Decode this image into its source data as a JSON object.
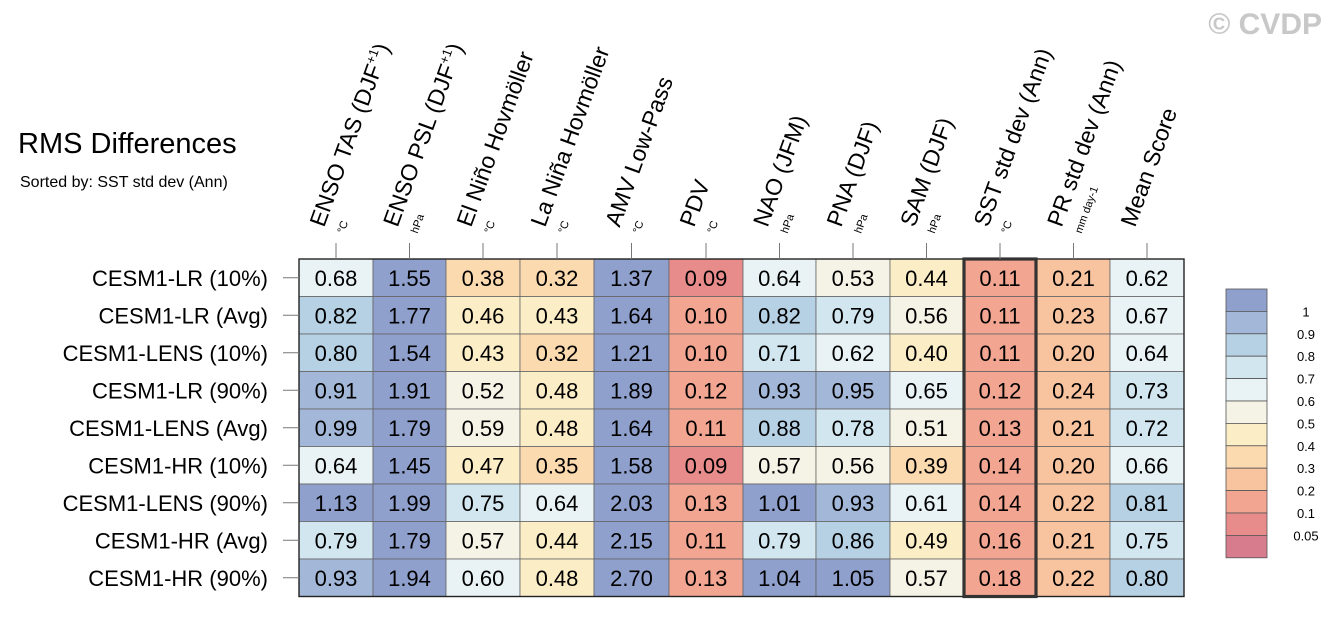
{
  "title": "RMS Differences",
  "subtitle": "Sorted by: SST std dev (Ann)",
  "watermark": "© CVDP",
  "chart_data": {
    "type": "heatmap",
    "columns": [
      {
        "label": "ENSO TAS (DJF",
        "sup": "+1",
        "tail": ")",
        "unit": "°C"
      },
      {
        "label": "ENSO PSL (DJF",
        "sup": "+1",
        "tail": ")",
        "unit": "hPa"
      },
      {
        "label": "El Niño Hovmöller",
        "sup": "",
        "tail": "",
        "unit": "°C"
      },
      {
        "label": "La Niña Hovmöller",
        "sup": "",
        "tail": "",
        "unit": "°C"
      },
      {
        "label": "AMV Low-Pass",
        "sup": "",
        "tail": "",
        "unit": "°C"
      },
      {
        "label": "PDV",
        "sup": "",
        "tail": "",
        "unit": "°C"
      },
      {
        "label": "NAO (JFM)",
        "sup": "",
        "tail": "",
        "unit": "hPa"
      },
      {
        "label": "PNA (DJF)",
        "sup": "",
        "tail": "",
        "unit": "hPa"
      },
      {
        "label": "SAM (DJF)",
        "sup": "",
        "tail": "",
        "unit": "hPa"
      },
      {
        "label": "SST std dev (Ann)",
        "sup": "",
        "tail": "",
        "unit": "°C"
      },
      {
        "label": "PR std dev (Ann)",
        "sup": "",
        "tail": "",
        "unit": "mm day-1"
      },
      {
        "label": "Mean Score",
        "sup": "",
        "tail": "",
        "unit": ""
      }
    ],
    "rows": [
      "CESM1-LR (10%)",
      "CESM1-LR (Avg)",
      "CESM1-LENS (10%)",
      "CESM1-LR (90%)",
      "CESM1-LENS (Avg)",
      "CESM1-HR (10%)",
      "CESM1-LENS (90%)",
      "CESM1-HR (Avg)",
      "CESM1-HR (90%)"
    ],
    "values": [
      [
        "0.68",
        "1.55",
        "0.38",
        "0.32",
        "1.37",
        "0.09",
        "0.64",
        "0.53",
        "0.44",
        "0.11",
        "0.21",
        "0.62"
      ],
      [
        "0.82",
        "1.77",
        "0.46",
        "0.43",
        "1.64",
        "0.10",
        "0.82",
        "0.79",
        "0.56",
        "0.11",
        "0.23",
        "0.67"
      ],
      [
        "0.80",
        "1.54",
        "0.43",
        "0.32",
        "1.21",
        "0.10",
        "0.71",
        "0.62",
        "0.40",
        "0.11",
        "0.20",
        "0.64"
      ],
      [
        "0.91",
        "1.91",
        "0.52",
        "0.48",
        "1.89",
        "0.12",
        "0.93",
        "0.95",
        "0.65",
        "0.12",
        "0.24",
        "0.73"
      ],
      [
        "0.99",
        "1.79",
        "0.59",
        "0.48",
        "1.64",
        "0.11",
        "0.88",
        "0.78",
        "0.51",
        "0.13",
        "0.21",
        "0.72"
      ],
      [
        "0.64",
        "1.45",
        "0.47",
        "0.35",
        "1.58",
        "0.09",
        "0.57",
        "0.56",
        "0.39",
        "0.14",
        "0.20",
        "0.66"
      ],
      [
        "1.13",
        "1.99",
        "0.75",
        "0.64",
        "2.03",
        "0.13",
        "1.01",
        "0.93",
        "0.61",
        "0.14",
        "0.22",
        "0.81"
      ],
      [
        "0.79",
        "1.79",
        "0.57",
        "0.44",
        "2.15",
        "0.11",
        "0.79",
        "0.86",
        "0.49",
        "0.16",
        "0.21",
        "0.75"
      ],
      [
        "0.93",
        "1.94",
        "0.60",
        "0.48",
        "2.70",
        "0.13",
        "1.04",
        "1.05",
        "0.57",
        "0.18",
        "0.22",
        "0.80"
      ]
    ],
    "highlighted_column": "SST std dev (Ann)",
    "colorbar": {
      "levels": [
        "1",
        "0.9",
        "0.8",
        "0.7",
        "0.6",
        "0.5",
        "0.4",
        "0.3",
        "0.2",
        "0.1",
        "0.05"
      ],
      "colors": [
        "#8fa0cd",
        "#a3b8d8",
        "#b6d0e4",
        "#d2e6ef",
        "#e9f3f5",
        "#f5f3e6",
        "#fbedc6",
        "#fbdaaf",
        "#f8c39f",
        "#f2a590",
        "#e88b8b",
        "#d77c8c"
      ]
    }
  }
}
